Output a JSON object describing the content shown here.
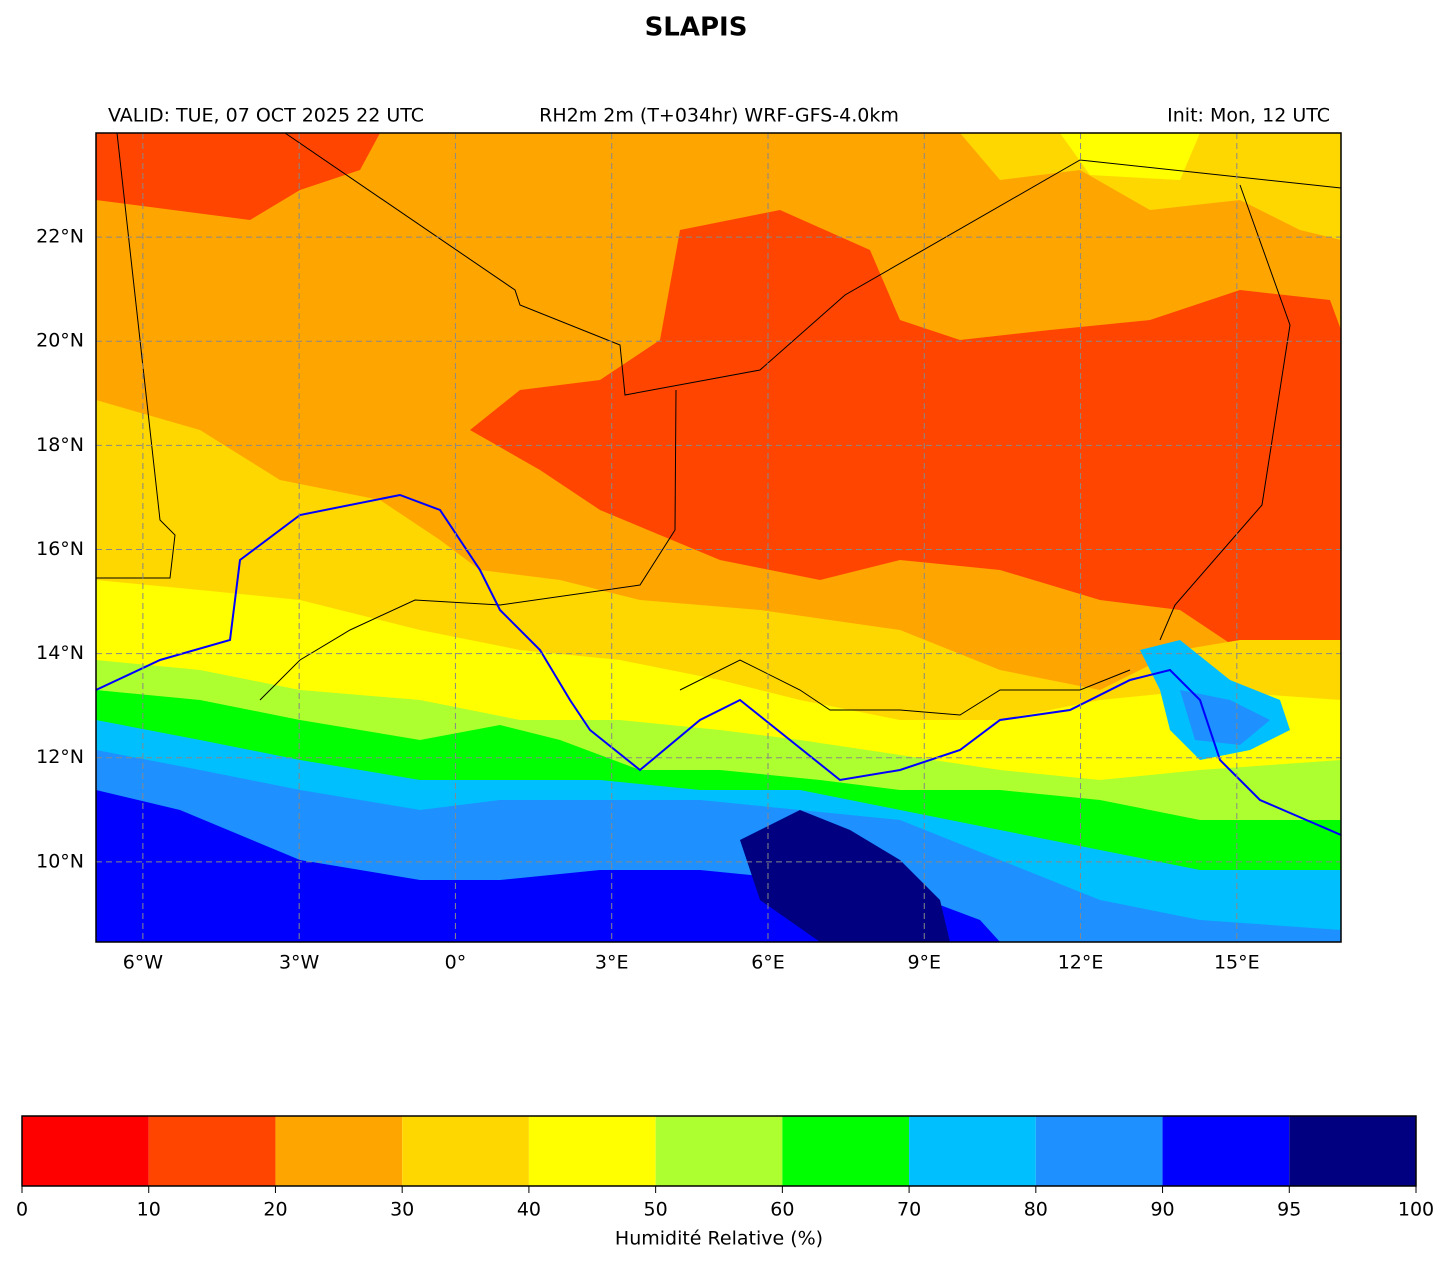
{
  "title": "SLAPIS",
  "valid": "VALID: TUE, 07 OCT 2025 22 UTC",
  "product": "RH2m 2m (T+034hr) WRF-GFS-4.0km",
  "init": "Init: Mon, 12 UTC",
  "map": {
    "lonlim": [
      -6.9,
      17
    ],
    "latlim": [
      8.46,
      24
    ],
    "lon_ticks": [
      {
        "value": -6,
        "label": "6°W"
      },
      {
        "value": -3,
        "label": "3°W"
      },
      {
        "value": 0,
        "label": "0°"
      },
      {
        "value": 3,
        "label": "3°E"
      },
      {
        "value": 6,
        "label": "6°E"
      },
      {
        "value": 9,
        "label": "9°E"
      },
      {
        "value": 12,
        "label": "12°E"
      },
      {
        "value": 15,
        "label": "15°E"
      }
    ],
    "lat_ticks": [
      {
        "value": 10,
        "label": "10°N"
      },
      {
        "value": 12,
        "label": "12°N"
      },
      {
        "value": 14,
        "label": "14°N"
      },
      {
        "value": 16,
        "label": "16°N"
      },
      {
        "value": 18,
        "label": "18°N"
      },
      {
        "value": 20,
        "label": "20°N"
      },
      {
        "value": 22,
        "label": "22°N"
      }
    ]
  },
  "colorbar": {
    "label": "Humidité Relative (%)",
    "bounds": [
      0,
      10,
      20,
      30,
      40,
      50,
      60,
      70,
      80,
      90,
      95,
      100
    ],
    "colors": [
      "#ff0000",
      "#ff4500",
      "#ffa500",
      "#ffd700",
      "#ffff00",
      "#adff2f",
      "#00ff00",
      "#00bfff",
      "#1e90ff",
      "#0000ff",
      "#000080"
    ]
  }
}
